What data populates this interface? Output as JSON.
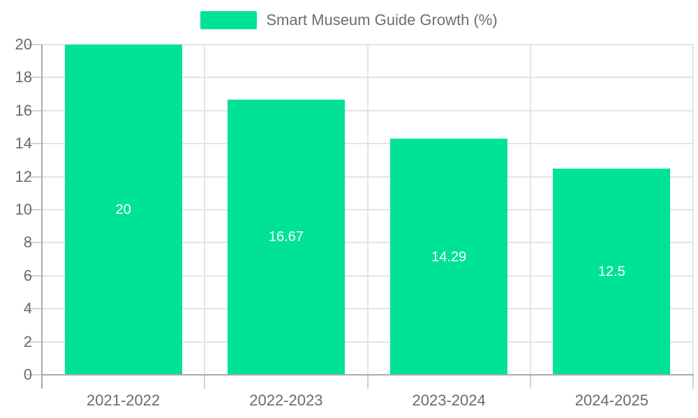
{
  "chart_data": {
    "type": "bar",
    "title": "Smart Museum Guide Growth (%)",
    "categories": [
      "2021-2022",
      "2022-2023",
      "2023-2024",
      "2024-2025"
    ],
    "values": [
      20,
      16.67,
      14.29,
      12.5
    ],
    "bar_labels": [
      "20",
      "16.67",
      "14.29",
      "12.5"
    ],
    "xlabel": "",
    "ylabel": "",
    "ylim": [
      0,
      20
    ],
    "ytick_step": 2,
    "grid": true,
    "legend_position": "top",
    "bar_width_ratio": 0.72
  },
  "legend": {
    "items": [
      {
        "label": "Smart Museum Guide Growth (%)",
        "swatch_color": "#00E396"
      }
    ]
  },
  "colors": {
    "background": "#ffffff",
    "bar": "#00E396",
    "bar_label": "#ffffff",
    "grid_line": "#e4e4e4",
    "axis_line": "#ababab",
    "outer_tick": "#d2d2d2",
    "axis_label": "#6b6b6b",
    "legend_label": "#6e6e6e"
  }
}
